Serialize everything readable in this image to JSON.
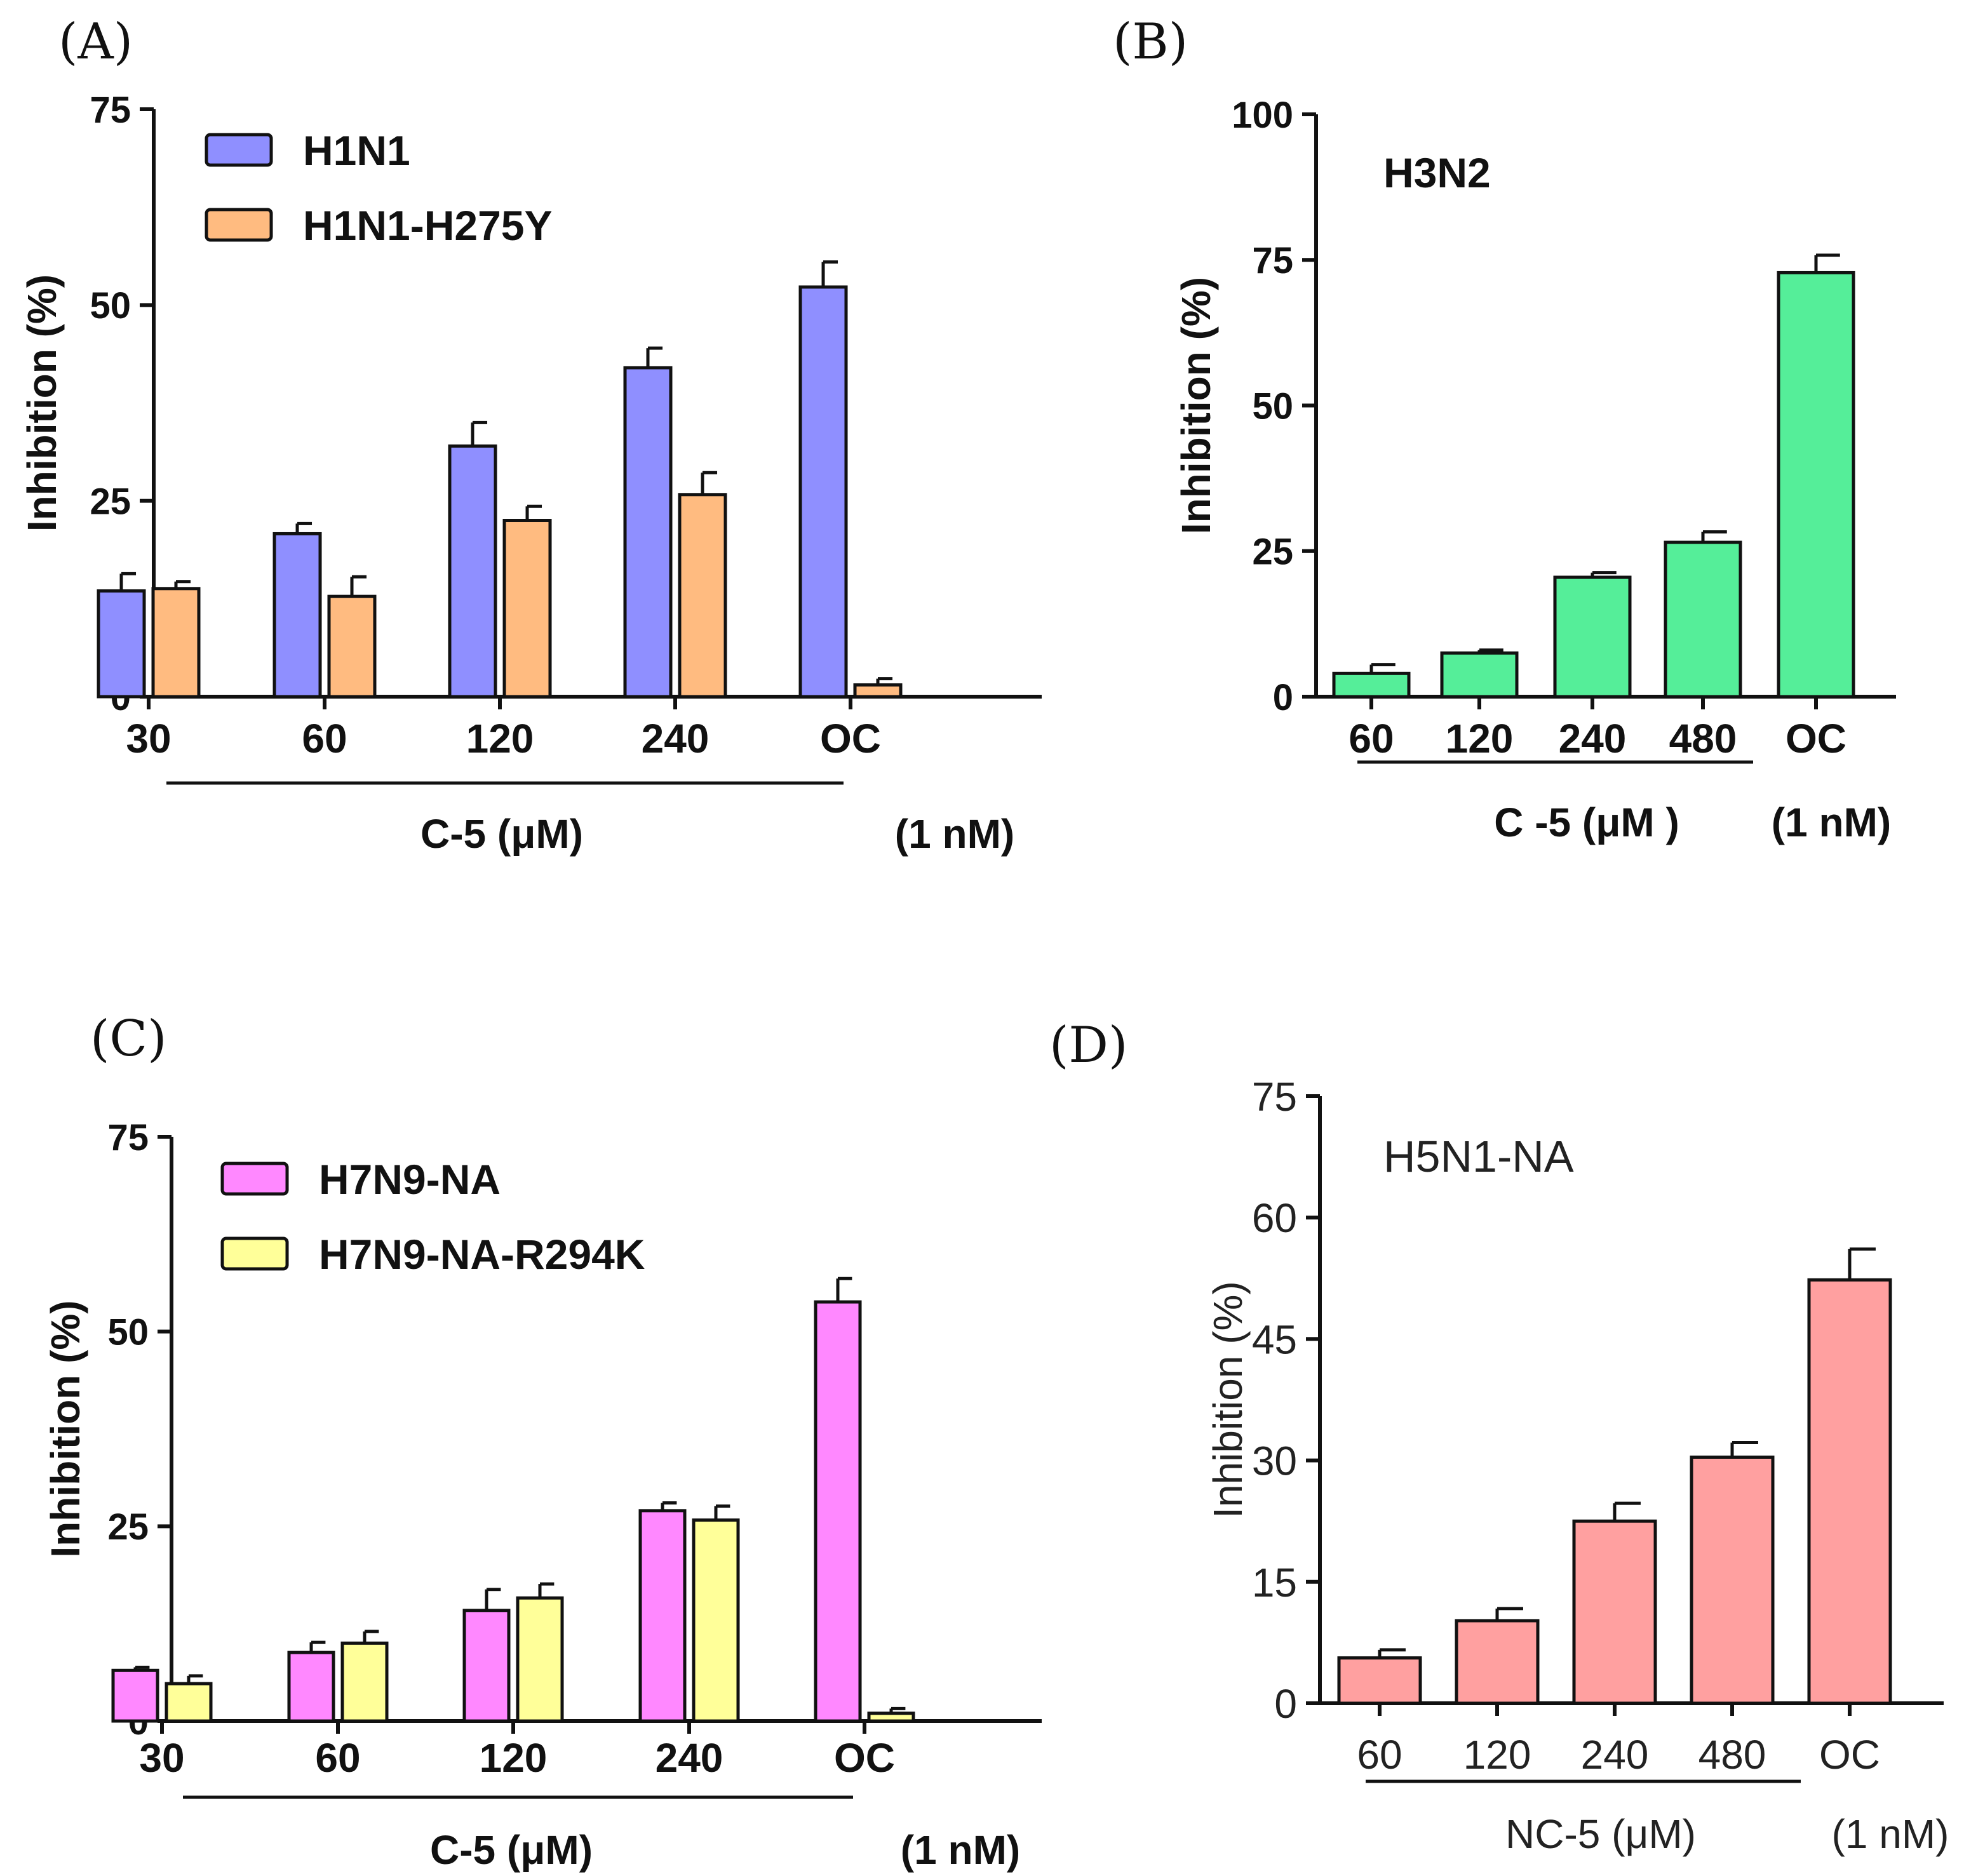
{
  "figure": {
    "panels": [
      "(A)",
      "(B)",
      "(C)",
      "(D)"
    ]
  },
  "chart_data": [
    {
      "panel": "(A)",
      "type": "bar",
      "title": "",
      "ylabel": "Inhibition (%)",
      "ylim": [
        0,
        75
      ],
      "yticks": [
        "0",
        "25",
        "50",
        "75"
      ],
      "categories": [
        "30",
        "60",
        "120",
        "240",
        "OC"
      ],
      "group_label": "C-5 (μM)",
      "oc_label": "(1 nM)",
      "legend_position": "top-left",
      "series": [
        {
          "name": "H1N1",
          "color": "#8f8fff",
          "values": [
            13.5,
            20.8,
            32.0,
            42.0,
            52.3
          ],
          "errors": [
            2.2,
            1.3,
            3.0,
            2.5,
            3.2
          ]
        },
        {
          "name": "H1N1-H275Y",
          "color": "#ffbb80",
          "values": [
            13.8,
            12.8,
            22.5,
            25.8,
            1.5
          ],
          "errors": [
            0.9,
            2.5,
            1.8,
            2.8,
            0.8
          ]
        }
      ]
    },
    {
      "panel": "(B)",
      "type": "bar",
      "title": "H3N2",
      "ylabel": "Inhibition (%)",
      "ylim": [
        0,
        100
      ],
      "yticks": [
        "0",
        "25",
        "50",
        "75",
        "100"
      ],
      "categories": [
        "60",
        "120",
        "240",
        "480",
        "OC"
      ],
      "group_label": "C -5 (μM )",
      "oc_label": "(1 nM)",
      "series": [
        {
          "name": "H3N2",
          "color": "#55ee99",
          "values": [
            4.0,
            7.5,
            20.5,
            26.5,
            72.8
          ],
          "errors": [
            1.5,
            0.5,
            0.8,
            1.8,
            3.0
          ]
        }
      ]
    },
    {
      "panel": "(C)",
      "type": "bar",
      "title": "",
      "ylabel": "Inhibition (%)",
      "ylim": [
        0,
        75
      ],
      "yticks": [
        "0",
        "25",
        "50",
        "75"
      ],
      "categories": [
        "30",
        "60",
        "120",
        "240",
        "OC"
      ],
      "group_label": "C-5 (μM)",
      "oc_label": "(1 nM)",
      "legend_position": "top-left",
      "series": [
        {
          "name": "H7N9-NA",
          "color": "#ff88ff",
          "values": [
            6.5,
            8.8,
            14.2,
            27.0,
            53.8
          ],
          "errors": [
            0.4,
            1.3,
            2.7,
            1.0,
            3.0
          ]
        },
        {
          "name": "H7N9-NA-R294K",
          "color": "#ffff99",
          "values": [
            4.8,
            10.0,
            15.8,
            25.8,
            1.0
          ],
          "errors": [
            1.0,
            1.5,
            1.8,
            1.8,
            0.6
          ]
        }
      ]
    },
    {
      "panel": "(D)",
      "type": "bar",
      "title": "H5N1-NA",
      "ylabel": "Inhibition (%)",
      "ylim": [
        0,
        75
      ],
      "yticks": [
        "0",
        "15",
        "30",
        "45",
        "60",
        "75"
      ],
      "categories": [
        "60",
        "120",
        "240",
        "480",
        "OC"
      ],
      "group_label": "NC-5 (μM)",
      "oc_label": "(1 nM)",
      "series": [
        {
          "name": "H5N1-NA",
          "color": "#ffa0a0",
          "values": [
            5.6,
            10.2,
            22.5,
            30.4,
            52.3
          ],
          "errors": [
            1.0,
            1.5,
            2.2,
            1.8,
            3.8
          ]
        }
      ]
    }
  ]
}
